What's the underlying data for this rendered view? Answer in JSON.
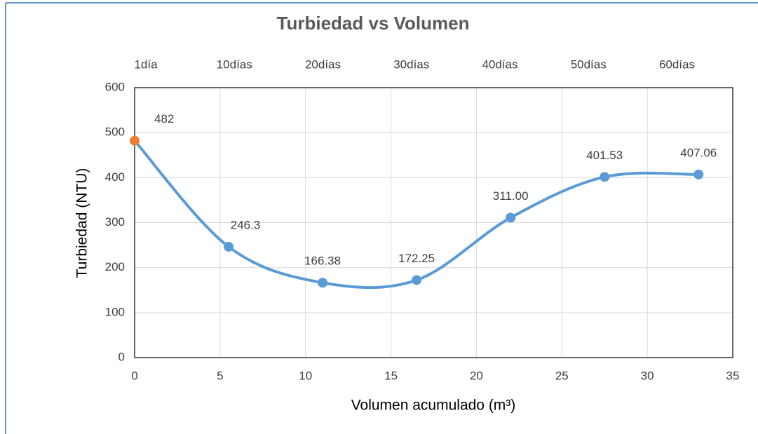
{
  "chart_data": {
    "type": "line",
    "title": "Turbiedad vs Volumen",
    "x_label": "Volumen acumulado (m³)",
    "y_label": "Turbiedad (NTU)",
    "top_categories": [
      "1día",
      "10días",
      "20días",
      "30días",
      "40días",
      "50días",
      "60días"
    ],
    "x": [
      0,
      5.5,
      11,
      16.5,
      22,
      27.5,
      33
    ],
    "series": [
      {
        "color": "#5b9bd5",
        "point_colors": [
          "#ed7d31",
          "#5b9bd5",
          "#5b9bd5",
          "#5b9bd5",
          "#5b9bd5",
          "#5b9bd5",
          "#5b9bd5"
        ],
        "values": [
          482,
          246.3,
          166.38,
          172.25,
          311.0,
          401.53,
          407.06
        ],
        "value_labels": [
          "482",
          "246.3",
          "166.38",
          "172.25",
          "311.00",
          "401.53",
          "407.06"
        ]
      }
    ],
    "xlim": [
      0,
      35
    ],
    "xticks": [
      0,
      5,
      10,
      15,
      20,
      25,
      30,
      35
    ],
    "ylim": [
      0,
      600
    ],
    "yticks": [
      0,
      100,
      200,
      300,
      400,
      500,
      600
    ],
    "grid": true,
    "smooth": true
  }
}
